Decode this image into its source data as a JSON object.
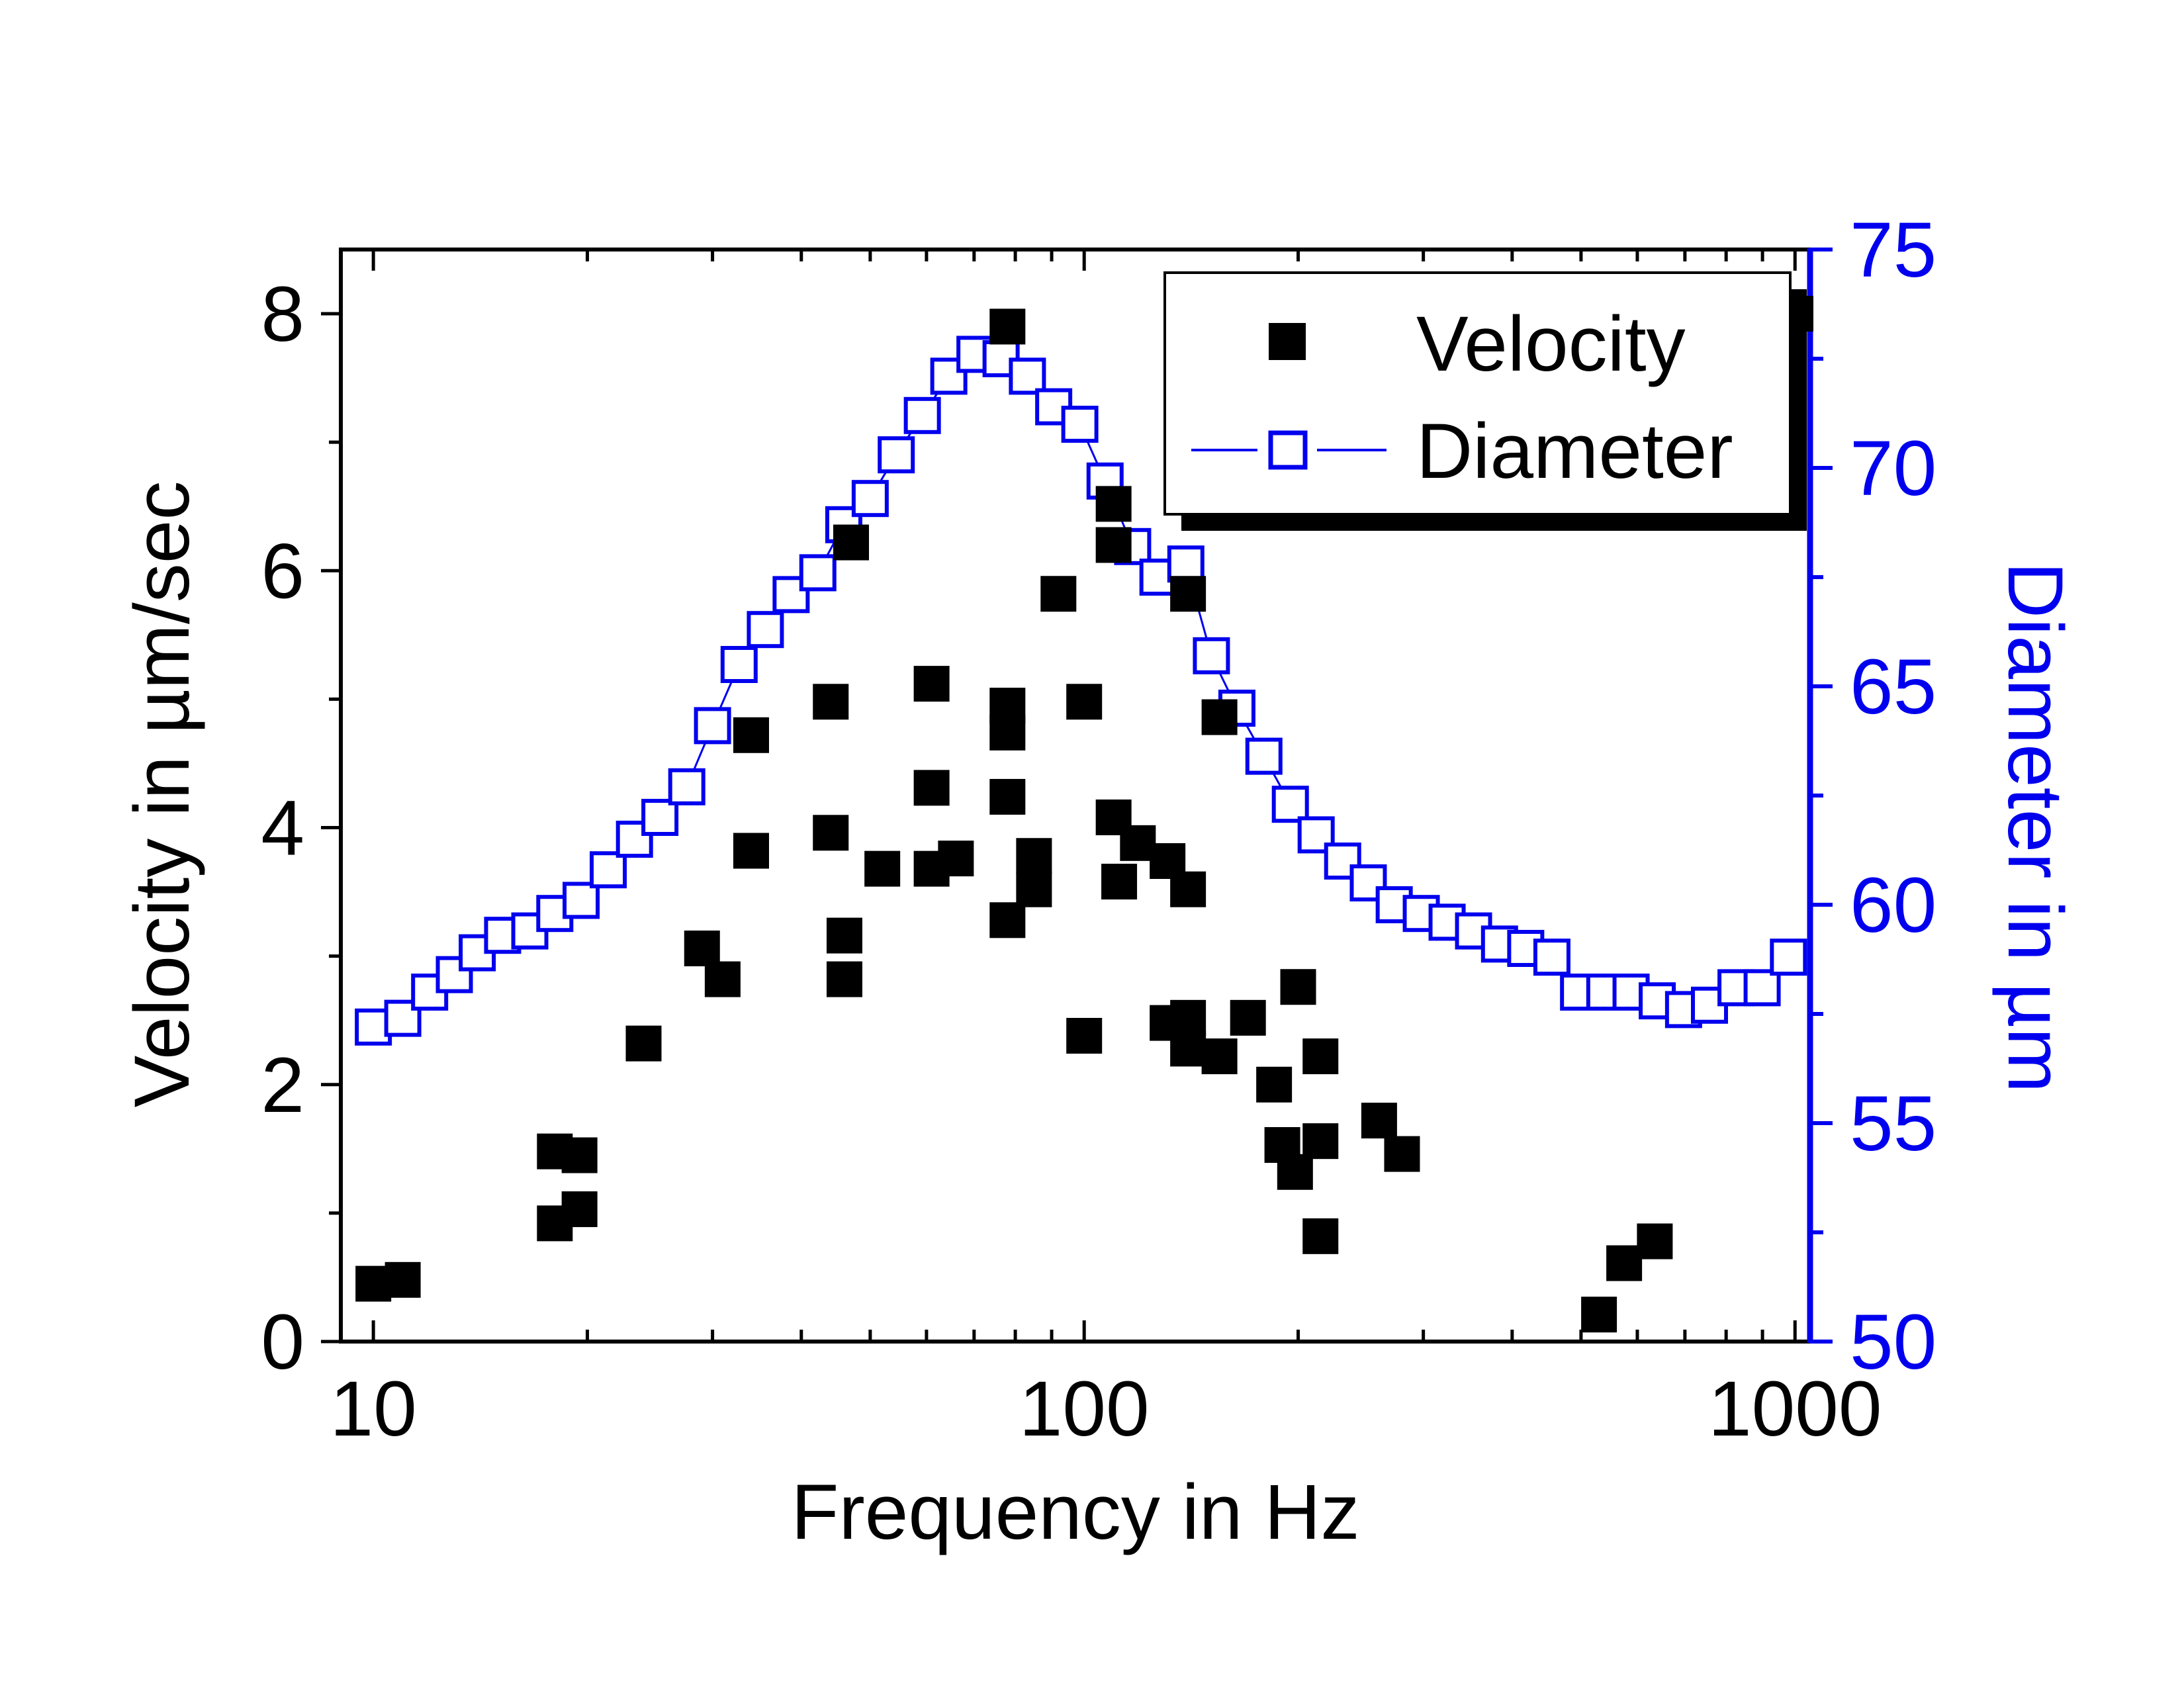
{
  "chart_data": {
    "type": "scatter",
    "title": "",
    "xlabel": "Frequency in Hz",
    "ylabel": "Velocity in µm/sec",
    "y2label": "Diameter in µm",
    "xscale": "log",
    "xlim": [
      9,
      1050
    ],
    "ylim": [
      0,
      8.5
    ],
    "y2lim": [
      50,
      75
    ],
    "xticks": [
      10,
      100,
      1000
    ],
    "xtick_labels": [
      "10",
      "100",
      "1000"
    ],
    "yticks": [
      0,
      2,
      4,
      6,
      8
    ],
    "ytick_labels": [
      "0",
      "2",
      "4",
      "6",
      "8"
    ],
    "y2ticks": [
      50,
      55,
      60,
      65,
      70,
      75
    ],
    "y2tick_labels": [
      "50",
      "55",
      "60",
      "65",
      "70",
      "75"
    ],
    "grid": false,
    "legend_position": "top-right",
    "colors": {
      "velocity": "#000000",
      "diameter": "#0000ee",
      "axis_left": "#000000",
      "axis_right": "#0000ee"
    },
    "series": [
      {
        "name": "Velocity",
        "axis": "left",
        "marker": "filled-square",
        "x": [
          10,
          11,
          18,
          18,
          19.5,
          19.5,
          24,
          29,
          31,
          34,
          34,
          44,
          44,
          46,
          46,
          47,
          52,
          61,
          61,
          61,
          66,
          78,
          78,
          78,
          78,
          78,
          85,
          85,
          92,
          100,
          100,
          110,
          110,
          110,
          112,
          119,
          131,
          131,
          140,
          140,
          140,
          140,
          155,
          155,
          170,
          185,
          190,
          198,
          200,
          215,
          215,
          215,
          260,
          280,
          530,
          575,
          635,
          1010
        ],
        "y": [
          0.45,
          0.48,
          0.92,
          1.48,
          1.03,
          1.45,
          2.32,
          3.06,
          2.82,
          4.72,
          3.82,
          4.98,
          3.96,
          2.82,
          3.16,
          6.22,
          3.68,
          5.12,
          4.31,
          3.68,
          3.76,
          7.9,
          4.95,
          4.74,
          4.24,
          3.28,
          3.78,
          3.52,
          5.82,
          4.98,
          2.38,
          6.2,
          6.52,
          4.08,
          3.58,
          3.88,
          3.74,
          2.48,
          5.82,
          2.52,
          2.28,
          3.52,
          4.86,
          2.22,
          2.52,
          2.0,
          1.53,
          1.32,
          2.76,
          1.56,
          2.22,
          0.82,
          1.72,
          1.46,
          0.21,
          0.61,
          0.78,
          8.0
        ]
      },
      {
        "name": "Diameter",
        "axis": "right",
        "marker": "open-square",
        "line": true,
        "x": [
          10,
          11,
          12,
          13,
          14,
          15.2,
          16.6,
          18,
          19.6,
          21.4,
          23.3,
          25.3,
          27.6,
          30,
          32.7,
          35.6,
          38.7,
          42.2,
          45.9,
          50,
          54.4,
          59.2,
          64.5,
          70.2,
          76.4,
          83.2,
          90.6,
          98.6,
          107,
          117,
          127,
          139,
          151,
          164,
          179,
          195,
          212,
          231,
          251,
          273,
          298,
          324,
          353,
          384,
          418,
          455,
          496,
          540,
          588,
          640,
          697,
          758,
          826,
          899,
          979
        ],
        "y": [
          57.2,
          57.4,
          58.0,
          58.4,
          58.9,
          59.3,
          59.4,
          59.8,
          60.1,
          60.8,
          61.5,
          62.0,
          62.7,
          64.1,
          65.5,
          66.3,
          67.1,
          67.6,
          68.7,
          69.3,
          70.3,
          71.2,
          72.1,
          72.6,
          72.5,
          72.1,
          71.4,
          71.0,
          69.7,
          68.2,
          67.5,
          67.8,
          65.7,
          64.5,
          63.4,
          62.3,
          61.6,
          61.0,
          60.5,
          60.0,
          59.8,
          59.6,
          59.4,
          59.1,
          59.0,
          58.8,
          58.0,
          58.0,
          58.0,
          57.8,
          57.6,
          57.7,
          58.1,
          58.1,
          58.8
        ]
      }
    ]
  }
}
